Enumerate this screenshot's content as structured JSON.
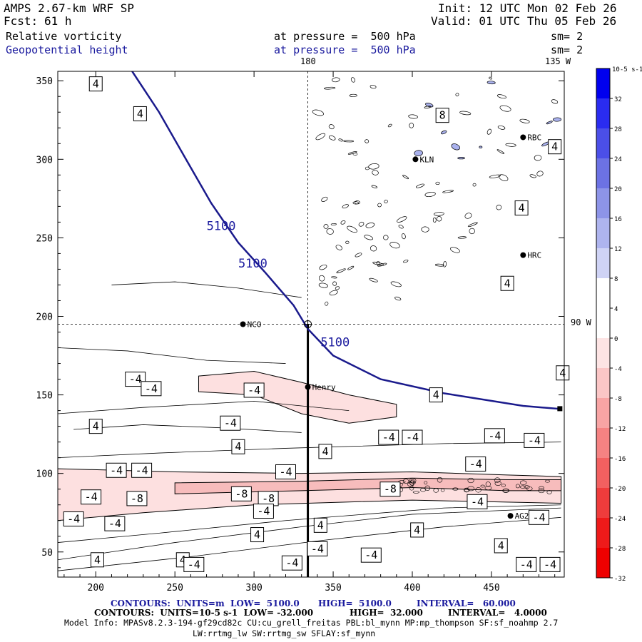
{
  "header": {
    "title": "AMPS 2.67-km WRF SP",
    "fcst_label": "Fcst:",
    "fcst_value": "61 h",
    "init": "Init: 12 UTC Mon 02 Feb 26",
    "valid": "Valid: 01 UTC Thu 05 Feb 26",
    "field1_name": "Relative vorticity",
    "field1_level": "at pressure =  500 hPa",
    "field1_smooth": "sm= 2",
    "field2_name": "Geopotential height",
    "field2_level": "at pressure =  500 hPa",
    "field2_smooth": "sm= 2"
  },
  "chart_data": {
    "type": "heatmap",
    "xlim": [
      176,
      496
    ],
    "ylim": [
      34,
      356
    ],
    "x_ticks": [
      200,
      250,
      300,
      350,
      400,
      450
    ],
    "y_ticks": [
      50,
      100,
      150,
      200,
      250,
      300,
      350
    ],
    "meridian_labels": {
      "top_180": "180",
      "top_135": "135 W",
      "right_90": "90 W"
    },
    "height_contours": {
      "level": "5100",
      "points": [
        [
          223,
          356
        ],
        [
          240,
          330
        ],
        [
          257,
          300
        ],
        [
          273,
          272
        ],
        [
          290,
          247
        ],
        [
          307,
          228
        ],
        [
          325,
          207
        ],
        [
          334,
          192
        ],
        [
          350,
          175
        ],
        [
          380,
          160
        ],
        [
          420,
          151
        ],
        [
          470,
          143
        ],
        [
          494,
          141
        ]
      ],
      "labels": [
        {
          "x": 270,
          "y": 255,
          "text": "5100"
        },
        {
          "x": 290,
          "y": 231,
          "text": "5100"
        },
        {
          "x": 342,
          "y": 181,
          "text": "5100"
        }
      ]
    },
    "vorticity_bands": [
      {
        "level": -4,
        "top": [
          [
            176,
            103
          ],
          [
            250,
            101
          ],
          [
            330,
            100
          ],
          [
            400,
            101
          ],
          [
            460,
            99
          ],
          [
            494,
            98
          ]
        ],
        "bottom": [
          [
            176,
            70
          ],
          [
            230,
            75
          ],
          [
            300,
            80
          ],
          [
            400,
            83
          ],
          [
            494,
            81
          ]
        ]
      },
      {
        "level": -8,
        "top": [
          [
            250,
            94
          ],
          [
            330,
            95
          ],
          [
            400,
            97
          ],
          [
            460,
            96
          ],
          [
            494,
            96
          ]
        ],
        "bottom": [
          [
            250,
            87
          ],
          [
            330,
            89
          ],
          [
            400,
            91
          ],
          [
            460,
            89
          ],
          [
            494,
            89
          ]
        ]
      },
      {
        "level": -4,
        "top": [
          [
            265,
            162
          ],
          [
            300,
            165
          ],
          [
            330,
            158
          ],
          [
            360,
            150
          ],
          [
            390,
            144
          ]
        ],
        "bottom": [
          [
            265,
            152
          ],
          [
            300,
            150
          ],
          [
            330,
            138
          ],
          [
            360,
            132
          ],
          [
            390,
            136
          ]
        ]
      }
    ],
    "contour_labels": [
      {
        "x": 200,
        "y": 348,
        "text": "4"
      },
      {
        "x": 228,
        "y": 329,
        "text": "4"
      },
      {
        "x": 419,
        "y": 328,
        "text": "8"
      },
      {
        "x": 490,
        "y": 308,
        "text": "4"
      },
      {
        "x": 469,
        "y": 269,
        "text": "4"
      },
      {
        "x": 460,
        "y": 221,
        "text": "4"
      },
      {
        "x": 495,
        "y": 164,
        "text": "4"
      },
      {
        "x": 415,
        "y": 150,
        "text": "4"
      },
      {
        "x": 225,
        "y": 160,
        "text": "-4"
      },
      {
        "x": 235,
        "y": 154,
        "text": "-4"
      },
      {
        "x": 300,
        "y": 153,
        "text": "-4"
      },
      {
        "x": 285,
        "y": 132,
        "text": "-4"
      },
      {
        "x": 200,
        "y": 130,
        "text": "4"
      },
      {
        "x": 290,
        "y": 117,
        "text": "4"
      },
      {
        "x": 345,
        "y": 114,
        "text": "4"
      },
      {
        "x": 385,
        "y": 123,
        "text": "-4"
      },
      {
        "x": 400,
        "y": 123,
        "text": "-4"
      },
      {
        "x": 452,
        "y": 124,
        "text": "-4"
      },
      {
        "x": 477,
        "y": 121,
        "text": "-4"
      },
      {
        "x": 213,
        "y": 102,
        "text": "-4"
      },
      {
        "x": 229,
        "y": 102,
        "text": "-4"
      },
      {
        "x": 320,
        "y": 101,
        "text": "-4"
      },
      {
        "x": 440,
        "y": 106,
        "text": "-4"
      },
      {
        "x": 197,
        "y": 85,
        "text": "-4"
      },
      {
        "x": 226,
        "y": 84,
        "text": "-8"
      },
      {
        "x": 292,
        "y": 87,
        "text": "-8"
      },
      {
        "x": 309,
        "y": 84,
        "text": "-8"
      },
      {
        "x": 386,
        "y": 90,
        "text": "-8"
      },
      {
        "x": 441,
        "y": 82,
        "text": "-4"
      },
      {
        "x": 480,
        "y": 72,
        "text": "-4"
      },
      {
        "x": 186,
        "y": 71,
        "text": "-4"
      },
      {
        "x": 212,
        "y": 68,
        "text": "-4"
      },
      {
        "x": 306,
        "y": 76,
        "text": "-4"
      },
      {
        "x": 342,
        "y": 67,
        "text": "4"
      },
      {
        "x": 403,
        "y": 64,
        "text": "4"
      },
      {
        "x": 302,
        "y": 61,
        "text": "4"
      },
      {
        "x": 340,
        "y": 52,
        "text": "-4"
      },
      {
        "x": 374,
        "y": 48,
        "text": "-4"
      },
      {
        "x": 456,
        "y": 54,
        "text": "4"
      },
      {
        "x": 201,
        "y": 45,
        "text": "4"
      },
      {
        "x": 255,
        "y": 45,
        "text": "4"
      },
      {
        "x": 262,
        "y": 42,
        "text": "-4"
      },
      {
        "x": 324,
        "y": 43,
        "text": "-4"
      },
      {
        "x": 472,
        "y": 42,
        "text": "-4"
      },
      {
        "x": 487,
        "y": 42,
        "text": "-4"
      }
    ],
    "stations": [
      {
        "name": "KLN",
        "x": 402,
        "y": 300
      },
      {
        "name": "HRC",
        "x": 470,
        "y": 239
      },
      {
        "name": "NCO",
        "x": 293,
        "y": 195
      },
      {
        "name": "Henry",
        "x": 334,
        "y": 155
      },
      {
        "name": "AG2",
        "x": 462,
        "y": 73
      },
      {
        "name": "RBC",
        "x": 470,
        "y": 314
      }
    ],
    "crosshair": {
      "x": 334,
      "y": 195
    },
    "colorbar": {
      "unit": "10-5 s-1",
      "levels": [
        32,
        28,
        24,
        20,
        16,
        12,
        8,
        4,
        0,
        -4,
        -8,
        -12,
        -16,
        -20,
        -24,
        -28,
        -32
      ],
      "colors": [
        "#0000ee",
        "#2a2cf0",
        "#4b4fe8",
        "#6c72e4",
        "#8d94e8",
        "#aeb4ee",
        "#cfd3f5",
        "#ffffff",
        "#ffffff",
        "#fde4e4",
        "#fbc6c6",
        "#f8a4a4",
        "#f58282",
        "#f26060",
        "#ef3c3c",
        "#ee1a1a",
        "#ee0000"
      ]
    }
  },
  "footer": {
    "line1_contours": "CONTOURS:  UNITS=m  LOW=  5100.0",
    "line1_high": "HIGH=  5100.0",
    "line1_interval": "INTERVAL=   60.000",
    "line2_contours": "CONTOURS:  UNITS=10-5 s-1  LOW= -32.000",
    "line2_high": "HIGH=  32.000",
    "line2_interval": "INTERVAL=   4.0000",
    "model_info": "Model Info: MPASv8.2.3-194-gf29cd82c CU:cu_grell_freitas PBL:bl_mynn MP:mp_thompson SF:sf_noahmp 2.7",
    "model_info2": "LW:rrtmg_lw SW:rrtmg_sw SFLAY:sf_mynn"
  }
}
